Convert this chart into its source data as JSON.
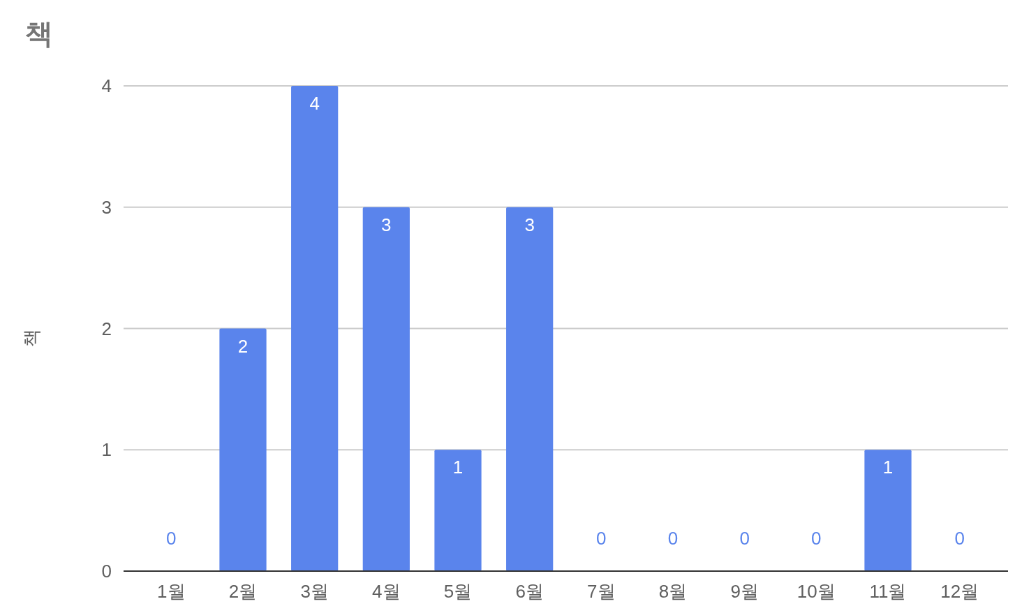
{
  "chart_data": {
    "type": "bar",
    "title": "책",
    "ylabel": "책",
    "categories": [
      "1월",
      "2월",
      "3월",
      "4월",
      "5월",
      "6월",
      "7월",
      "8월",
      "9월",
      "10월",
      "11월",
      "12월"
    ],
    "values": [
      0,
      2,
      4,
      3,
      1,
      3,
      0,
      0,
      0,
      0,
      1,
      0
    ],
    "color": "#5a84ec",
    "ylim": [
      0,
      4
    ],
    "yticks": [
      0,
      1,
      2,
      3,
      4
    ],
    "grid": "y",
    "data_labels": true
  }
}
